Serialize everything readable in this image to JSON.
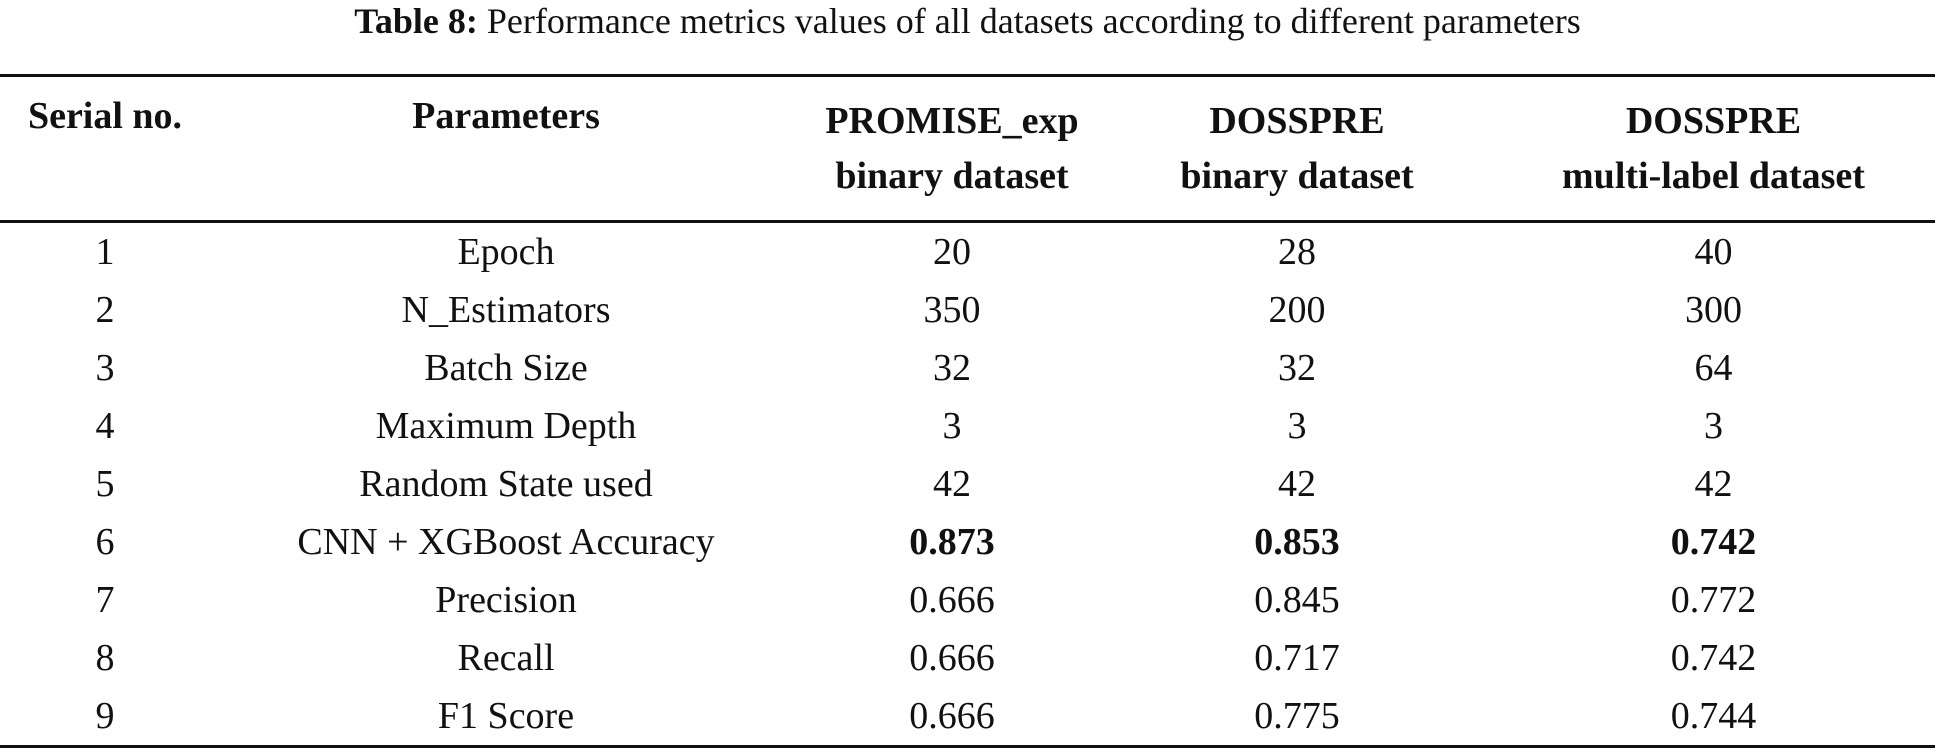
{
  "caption": {
    "label": "Table 8:",
    "text": "Performance metrics values of all datasets according to different parameters"
  },
  "table": {
    "headers": {
      "serial": "Serial no.",
      "parameters": "Parameters",
      "promise": [
        "PROMISE_exp",
        "binary dataset"
      ],
      "dosspre_binary": [
        "DOSSPRE",
        "binary dataset"
      ],
      "dosspre_multi": [
        "DOSSPRE",
        "multi-label dataset"
      ]
    },
    "rows": [
      [
        "1",
        "Epoch",
        "20",
        "28",
        "40"
      ],
      [
        "2",
        "N_Estimators",
        "350",
        "200",
        "300"
      ],
      [
        "3",
        "Batch Size",
        "32",
        "32",
        "64"
      ],
      [
        "4",
        "Maximum Depth",
        "3",
        "3",
        "3"
      ],
      [
        "5",
        "Random State used",
        "42",
        "42",
        "42"
      ],
      [
        "6",
        "CNN + XGBoost Accuracy",
        "0.873",
        "0.853",
        "0.742"
      ],
      [
        "7",
        "Precision",
        "0.666",
        "0.845",
        "0.772"
      ],
      [
        "8",
        "Recall",
        "0.666",
        "0.717",
        "0.742"
      ],
      [
        "9",
        "F1 Score",
        "0.666",
        "0.775",
        "0.744"
      ]
    ]
  }
}
